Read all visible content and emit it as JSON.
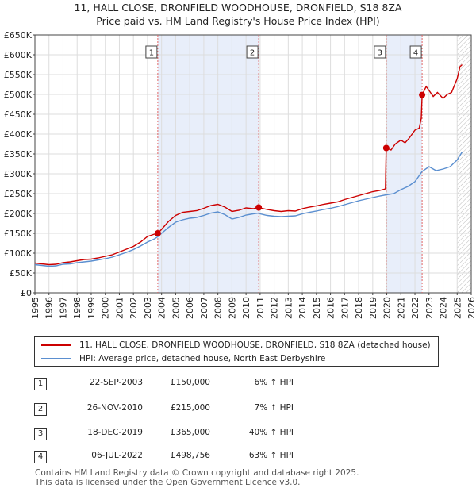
{
  "chart_data": {
    "type": "line",
    "title": "11, HALL CLOSE, DRONFIELD WOODHOUSE, DRONFIELD, S18 8ZA",
    "subtitle": "Price paid vs. HM Land Registry's House Price Index (HPI)",
    "xlim": [
      1995,
      2026
    ],
    "ylim": [
      0,
      650000
    ],
    "x_ticks": [
      "1995",
      "1996",
      "1997",
      "1998",
      "1999",
      "2000",
      "2001",
      "2002",
      "2003",
      "2004",
      "2005",
      "2006",
      "2007",
      "2008",
      "2009",
      "2010",
      "2011",
      "2012",
      "2013",
      "2014",
      "2015",
      "2016",
      "2017",
      "2018",
      "2019",
      "2020",
      "2021",
      "2022",
      "2023",
      "2024",
      "2025",
      "2026"
    ],
    "y_ticks": [
      {
        "value": 0,
        "label": "£0"
      },
      {
        "value": 50000,
        "label": "£50K"
      },
      {
        "value": 100000,
        "label": "£100K"
      },
      {
        "value": 150000,
        "label": "£150K"
      },
      {
        "value": 200000,
        "label": "£200K"
      },
      {
        "value": 250000,
        "label": "£250K"
      },
      {
        "value": 300000,
        "label": "£300K"
      },
      {
        "value": 350000,
        "label": "£350K"
      },
      {
        "value": 400000,
        "label": "£400K"
      },
      {
        "value": 450000,
        "label": "£450K"
      },
      {
        "value": 500000,
        "label": "£500K"
      },
      {
        "value": 550000,
        "label": "£550K"
      },
      {
        "value": 600000,
        "label": "£600K"
      },
      {
        "value": 650000,
        "label": "£650K"
      }
    ],
    "shaded_periods": [
      [
        2003.73,
        2010.9
      ],
      [
        2019.96,
        2022.51
      ]
    ],
    "hatched_from": 2025.0,
    "series": [
      {
        "name": "11, HALL CLOSE, DRONFIELD WOODHOUSE, DRONFIELD, S18 8ZA (detached house)",
        "color": "#cc0000",
        "points": [
          [
            1995.0,
            75000
          ],
          [
            1995.5,
            73000
          ],
          [
            1996.0,
            71000
          ],
          [
            1996.5,
            72000
          ],
          [
            1997.0,
            76000
          ],
          [
            1997.5,
            78000
          ],
          [
            1998.0,
            81000
          ],
          [
            1998.5,
            84000
          ],
          [
            1999.0,
            85000
          ],
          [
            1999.5,
            88000
          ],
          [
            2000.0,
            92000
          ],
          [
            2000.5,
            96000
          ],
          [
            2001.0,
            103000
          ],
          [
            2001.5,
            110000
          ],
          [
            2002.0,
            117000
          ],
          [
            2002.5,
            128000
          ],
          [
            2003.0,
            142000
          ],
          [
            2003.5,
            148000
          ],
          [
            2003.73,
            150000
          ],
          [
            2004.0,
            160000
          ],
          [
            2004.5,
            180000
          ],
          [
            2005.0,
            195000
          ],
          [
            2005.5,
            203000
          ],
          [
            2006.0,
            205000
          ],
          [
            2006.5,
            207000
          ],
          [
            2007.0,
            213000
          ],
          [
            2007.5,
            220000
          ],
          [
            2008.0,
            223000
          ],
          [
            2008.5,
            216000
          ],
          [
            2009.0,
            205000
          ],
          [
            2009.5,
            208000
          ],
          [
            2010.0,
            214000
          ],
          [
            2010.5,
            212000
          ],
          [
            2010.9,
            215000
          ],
          [
            2011.0,
            214000
          ],
          [
            2011.5,
            210000
          ],
          [
            2012.0,
            207000
          ],
          [
            2012.5,
            205000
          ],
          [
            2013.0,
            207000
          ],
          [
            2013.5,
            206000
          ],
          [
            2014.0,
            212000
          ],
          [
            2014.5,
            216000
          ],
          [
            2015.0,
            219000
          ],
          [
            2015.5,
            223000
          ],
          [
            2016.0,
            226000
          ],
          [
            2016.5,
            229000
          ],
          [
            2017.0,
            235000
          ],
          [
            2017.5,
            240000
          ],
          [
            2018.0,
            245000
          ],
          [
            2018.5,
            250000
          ],
          [
            2019.0,
            255000
          ],
          [
            2019.5,
            258000
          ],
          [
            2019.9,
            262000
          ],
          [
            2019.96,
            365000
          ],
          [
            2020.3,
            360000
          ],
          [
            2020.6,
            375000
          ],
          [
            2021.0,
            385000
          ],
          [
            2021.3,
            378000
          ],
          [
            2021.6,
            390000
          ],
          [
            2022.0,
            410000
          ],
          [
            2022.3,
            415000
          ],
          [
            2022.45,
            440000
          ],
          [
            2022.51,
            498756
          ],
          [
            2022.8,
            520000
          ],
          [
            2023.0,
            510000
          ],
          [
            2023.3,
            495000
          ],
          [
            2023.6,
            505000
          ],
          [
            2024.0,
            490000
          ],
          [
            2024.3,
            500000
          ],
          [
            2024.6,
            505000
          ],
          [
            2025.0,
            540000
          ],
          [
            2025.2,
            570000
          ],
          [
            2025.35,
            575000
          ]
        ]
      },
      {
        "name": "HPI: Average price, detached house, North East Derbyshire",
        "color": "#5b8fd0",
        "points": [
          [
            1995.0,
            71000
          ],
          [
            1995.5,
            69000
          ],
          [
            1996.0,
            67000
          ],
          [
            1996.5,
            68000
          ],
          [
            1997.0,
            72000
          ],
          [
            1997.5,
            73000
          ],
          [
            1998.0,
            76000
          ],
          [
            1998.5,
            78000
          ],
          [
            1999.0,
            80000
          ],
          [
            1999.5,
            83000
          ],
          [
            2000.0,
            86000
          ],
          [
            2000.5,
            90000
          ],
          [
            2001.0,
            96000
          ],
          [
            2001.5,
            102000
          ],
          [
            2002.0,
            109000
          ],
          [
            2002.5,
            118000
          ],
          [
            2003.0,
            128000
          ],
          [
            2003.5,
            136000
          ],
          [
            2003.73,
            141500
          ],
          [
            2004.0,
            150000
          ],
          [
            2004.5,
            165000
          ],
          [
            2005.0,
            178000
          ],
          [
            2005.5,
            184000
          ],
          [
            2006.0,
            188000
          ],
          [
            2006.5,
            190000
          ],
          [
            2007.0,
            195000
          ],
          [
            2007.5,
            201000
          ],
          [
            2008.0,
            204000
          ],
          [
            2008.5,
            197000
          ],
          [
            2009.0,
            186000
          ],
          [
            2009.5,
            190000
          ],
          [
            2010.0,
            196000
          ],
          [
            2010.5,
            199000
          ],
          [
            2010.9,
            201000
          ],
          [
            2011.0,
            199000
          ],
          [
            2011.5,
            195000
          ],
          [
            2012.0,
            193000
          ],
          [
            2012.5,
            192000
          ],
          [
            2013.0,
            193000
          ],
          [
            2013.5,
            194000
          ],
          [
            2014.0,
            199000
          ],
          [
            2014.5,
            203000
          ],
          [
            2015.0,
            206000
          ],
          [
            2015.5,
            210000
          ],
          [
            2016.0,
            213000
          ],
          [
            2016.5,
            217000
          ],
          [
            2017.0,
            222000
          ],
          [
            2017.5,
            227000
          ],
          [
            2018.0,
            232000
          ],
          [
            2018.5,
            236000
          ],
          [
            2019.0,
            240000
          ],
          [
            2019.5,
            244000
          ],
          [
            2019.96,
            247000
          ],
          [
            2020.5,
            250000
          ],
          [
            2021.0,
            260000
          ],
          [
            2021.5,
            268000
          ],
          [
            2022.0,
            280000
          ],
          [
            2022.51,
            306000
          ],
          [
            2023.0,
            318000
          ],
          [
            2023.5,
            308000
          ],
          [
            2024.0,
            312000
          ],
          [
            2024.5,
            318000
          ],
          [
            2025.0,
            335000
          ],
          [
            2025.35,
            355000
          ]
        ]
      }
    ],
    "markers": [
      {
        "label": "1",
        "x": 2003.73,
        "y": 150000
      },
      {
        "label": "2",
        "x": 2010.9,
        "y": 215000
      },
      {
        "label": "3",
        "x": 2019.96,
        "y": 365000
      },
      {
        "label": "4",
        "x": 2022.51,
        "y": 498756
      }
    ]
  },
  "legend": {
    "property": "11, HALL CLOSE, DRONFIELD WOODHOUSE, DRONFIELD, S18 8ZA (detached house)",
    "hpi": "HPI: Average price, detached house, North East Derbyshire"
  },
  "transactions": [
    {
      "num": "1",
      "date": "22-SEP-2003",
      "price": "£150,000",
      "hpi": "6% ↑ HPI"
    },
    {
      "num": "2",
      "date": "26-NOV-2010",
      "price": "£215,000",
      "hpi": "7% ↑ HPI"
    },
    {
      "num": "3",
      "date": "18-DEC-2019",
      "price": "£365,000",
      "hpi": "40% ↑ HPI"
    },
    {
      "num": "4",
      "date": "06-JUL-2022",
      "price": "£498,756",
      "hpi": "63% ↑ HPI"
    }
  ],
  "footer": {
    "line1": "Contains HM Land Registry data © Crown copyright and database right 2025.",
    "line2": "This data is licensed under the Open Government Licence v3.0."
  },
  "colors": {
    "property": "#cc0000",
    "hpi": "#5b8fd0",
    "shade": "#e8eefa",
    "grid": "#dddddd"
  }
}
